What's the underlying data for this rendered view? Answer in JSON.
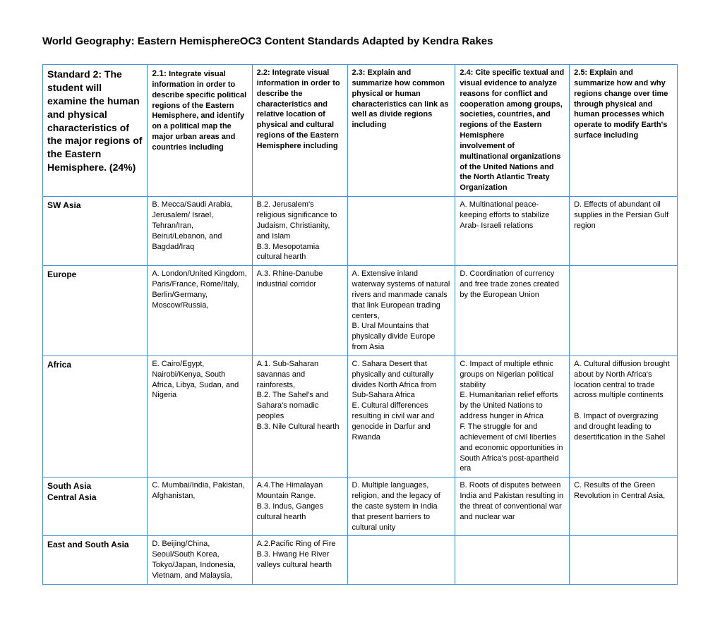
{
  "title": "World Geography: Eastern HemisphereOC3 Content Standards Adapted by Kendra Rakes",
  "header": {
    "main": "Standard 2: The student will examine the human and physical characteristics of the major regions of the Eastern Hemisphere. (24%)",
    "c1_lead": "2.1:",
    "c1": " Integrate visual information in order to describe specific political regions of the Eastern Hemisphere, and identify on a political map the major urban areas and countries including",
    "c2": "2.2: Integrate visual information in order to describe the characteristics and relative location of physical and cultural regions of the Eastern Hemisphere including",
    "c3": "2.3: Explain and summarize how common physical or human characteristics can link as well as divide regions including",
    "c4": "2.4: Cite specific textual and visual evidence to analyze reasons for conflict and cooperation among groups, societies, countries, and regions of the Eastern Hemisphere\ninvolvement of multinational organizations of the United Nations and the North Atlantic Treaty Organization",
    "c5": "2.5: Explain and summarize how and why regions change over time through physical and human processes which operate to modify Earth's surface including"
  },
  "rows": [
    {
      "label": "SW Asia",
      "c1": "B. Mecca/Saudi Arabia, Jerusalem/ Israel, Tehran/Iran, Beirut/Lebanon, and Bagdad/Iraq",
      "c2": "B.2. Jerusalem's religious significance to Judaism, Christianity, and Islam\nB.3. Mesopotamia cultural hearth",
      "c3": "",
      "c4": "A. Multinational peace-keeping efforts to stabilize Arab- Israeli relations",
      "c5": "D. Effects of abundant oil supplies in the Persian Gulf region"
    },
    {
      "label": "Europe",
      "c1": "A. London/United Kingdom, Paris/France, Rome/Italy, Berlin/Germany, Moscow/Russia,",
      "c2": "A.3. Rhine-Danube industrial corridor",
      "c3": "A. Extensive inland waterway systems of natural rivers and manmade canals that link European trading centers,\nB. Ural Mountains that physically divide Europe from Asia",
      "c4": "D. Coordination of currency and free trade zones created by the European Union",
      "c5": ""
    },
    {
      "label": "Africa",
      "c1": "E. Cairo/Egypt, Nairobi/Kenya, South Africa, Libya, Sudan, and Nigeria",
      "c2": "A.1. Sub-Saharan savannas and rainforests,\nB.2. The Sahel's and Sahara's nomadic peoples\nB.3. Nile Cultural hearth",
      "c3": "C. Sahara Desert that physically and culturally divides North Africa from Sub-Sahara Africa\nE. Cultural differences resulting in civil war and genocide in Darfur and Rwanda",
      "c4": "C. Impact of multiple ethnic groups on Nigerian political stability\nE. Humanitarian relief efforts by the United Nations to address hunger in Africa\nF. The struggle for and achievement of civil liberties and economic opportunities in South Africa's post-apartheid era",
      "c5": "A. Cultural diffusion brought about by North Africa's location central to trade across multiple continents\n\nB. Impact of overgrazing and drought leading to desertification in the Sahel"
    },
    {
      "label": "South Asia\nCentral Asia",
      "c1": "C. Mumbai/India, Pakistan, Afghanistan,",
      "c2": "A.4.The Himalayan Mountain Range.\nB.3. Indus, Ganges cultural hearth",
      "c3": "D. Multiple languages, religion, and the legacy of the caste system in India that present barriers to cultural unity",
      "c4": "B. Roots of disputes between India and Pakistan resulting in the threat of conventional war and nuclear war",
      "c5": "C. Results of the Green Revolution in Central Asia,"
    },
    {
      "label": "East and South Asia",
      "c1": "  D. Beijing/China, Seoul/South Korea, Tokyo/Japan, Indonesia, Vietnam, and Malaysia,",
      "c2": "A.2.Pacific Ring of Fire\nB.3. Hwang He River valleys cultural hearth",
      "c3": "",
      "c4": "",
      "c5": ""
    }
  ]
}
